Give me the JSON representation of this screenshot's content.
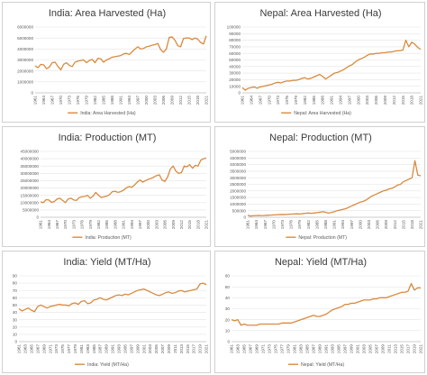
{
  "colors": {
    "series": "#d98a3e",
    "grid": "#e3e3e3",
    "text": "#595959"
  },
  "chart_data": [
    {
      "type": "line",
      "title": "India: Area Harvested (Ha)",
      "legend": {
        "label": "India: Area Harvested (Ha)",
        "placement": "bottom"
      },
      "ylim": [
        0,
        6000000
      ],
      "yticks": [
        "0",
        "1000000",
        "2000000",
        "3000000",
        "4000000",
        "5000000",
        "6000000"
      ],
      "xticks": [
        "1961",
        "1964",
        "1967",
        "1970",
        "1973",
        "1976",
        "1979",
        "1982",
        "1985",
        "1988",
        "1991",
        "1994",
        "1997",
        "2000",
        "2003",
        "2006",
        "2009",
        "2012",
        "2015",
        "2018",
        "2021"
      ],
      "x_start": 1961,
      "series": [
        {
          "name": "India: Area Harvested (Ha)",
          "values": [
            2450000,
            2300000,
            2600000,
            2550000,
            2200000,
            2350000,
            2750000,
            2800000,
            2400000,
            2100000,
            2600000,
            2750000,
            2500000,
            2400000,
            2800000,
            2900000,
            2950000,
            3000000,
            2750000,
            2950000,
            3050000,
            2750000,
            3150000,
            3100000,
            2800000,
            3000000,
            3100000,
            3250000,
            3300000,
            3350000,
            3400000,
            3550000,
            3600000,
            3500000,
            3750000,
            4000000,
            4200000,
            4000000,
            4050000,
            4200000,
            4250000,
            4350000,
            4400000,
            4500000,
            3950000,
            3700000,
            4000000,
            5050000,
            5100000,
            4800000,
            4300000,
            4200000,
            4950000,
            5000000,
            5000000,
            4850000,
            5000000,
            4900000,
            4600000,
            4450000,
            5200000
          ]
        }
      ]
    },
    {
      "type": "line",
      "title": "Nepal: Area Harvested (Ha)",
      "legend": {
        "label": "Nepal: Area Harvested (Ha)",
        "placement": "bottom"
      },
      "ylim": [
        0,
        100000
      ],
      "yticks": [
        "0",
        "10000",
        "20000",
        "30000",
        "40000",
        "50000",
        "60000",
        "70000",
        "80000",
        "90000",
        "100000"
      ],
      "xticks": [
        "1961",
        "1964",
        "1967",
        "1970",
        "1973",
        "1976",
        "1979",
        "1982",
        "1985",
        "1988",
        "1991",
        "1994",
        "1997",
        "2000",
        "2003",
        "2006",
        "2009",
        "2012",
        "2015",
        "2018",
        "2021"
      ],
      "x_start": 1961,
      "series": [
        {
          "name": "Nepal: Area Harvested (Ha)",
          "values": [
            8000,
            4000,
            7000,
            8000,
            9000,
            7000,
            9000,
            10000,
            11000,
            12000,
            13000,
            15000,
            16000,
            15000,
            17000,
            18000,
            18000,
            19000,
            19000,
            20000,
            22000,
            23000,
            21000,
            22000,
            24000,
            26000,
            28000,
            25000,
            21000,
            24000,
            27000,
            30000,
            31000,
            33000,
            35000,
            38000,
            41000,
            43000,
            47000,
            50000,
            52000,
            54000,
            57000,
            59000,
            59000,
            60000,
            60000,
            61000,
            61000,
            62000,
            62000,
            63000,
            64000,
            64000,
            65000,
            80000,
            70000,
            77000,
            74000,
            69000,
            66000
          ]
        }
      ]
    },
    {
      "type": "line",
      "title": "India: Production (MT)",
      "legend": {
        "label": "India: Production (MT)",
        "placement": "bottom"
      },
      "ylim": [
        0,
        45000000
      ],
      "yticks": [
        "0",
        "5000000",
        "10000000",
        "15000000",
        "20000000",
        "25000000",
        "30000000",
        "35000000",
        "40000000",
        "45000000"
      ],
      "xticks": [
        "1961",
        "1964",
        "1967",
        "1970",
        "1973",
        "1976",
        "1979",
        "1982",
        "1985",
        "1988",
        "1991",
        "1994",
        "1997",
        "2000",
        "2003",
        "2006",
        "2009",
        "2012",
        "2015",
        "2018",
        "2021"
      ],
      "x_start": 1961,
      "series": [
        {
          "name": "India: Production (MT)",
          "values": [
            10500000,
            10000000,
            12000000,
            11800000,
            10200000,
            10800000,
            12500000,
            13000000,
            11500000,
            10000000,
            12500000,
            13000000,
            11800000,
            11500000,
            13500000,
            14000000,
            14200000,
            15000000,
            13000000,
            14500000,
            17000000,
            15000000,
            13500000,
            14000000,
            14500000,
            15500000,
            17500000,
            17800000,
            17000000,
            17500000,
            18500000,
            20000000,
            21000000,
            20500000,
            22000000,
            24000000,
            25500000,
            24000000,
            25000000,
            26000000,
            26500000,
            27500000,
            28500000,
            29000000,
            25500000,
            24500000,
            27500000,
            33000000,
            35000000,
            31500000,
            30000000,
            30500000,
            35000000,
            34500000,
            36000000,
            33500000,
            35500000,
            35000000,
            39000000,
            40000000,
            40500000
          ]
        }
      ]
    },
    {
      "type": "line",
      "title": "Nepal: Production (MT)",
      "legend": {
        "label": "Nepal: Production (MT)",
        "placement": "bottom"
      },
      "ylim": [
        0,
        5000000
      ],
      "yticks": [
        "0",
        "500000",
        "1000000",
        "1500000",
        "2000000",
        "2500000",
        "3000000",
        "3500000",
        "4000000",
        "4500000",
        "5000000"
      ],
      "xticks": [
        "1961",
        "1964",
        "1967",
        "1970",
        "1973",
        "1976",
        "1979",
        "1982",
        "1985",
        "1988",
        "1991",
        "1994",
        "1997",
        "2000",
        "2003",
        "2006",
        "2009",
        "2012",
        "2015",
        "2018",
        "2021"
      ],
      "x_start": 1961,
      "series": [
        {
          "name": "Nepal: Production (MT)",
          "values": [
            150000,
            90000,
            120000,
            130000,
            140000,
            120000,
            140000,
            150000,
            160000,
            180000,
            190000,
            200000,
            210000,
            200000,
            220000,
            240000,
            250000,
            260000,
            250000,
            270000,
            300000,
            320000,
            300000,
            320000,
            350000,
            380000,
            420000,
            380000,
            320000,
            360000,
            420000,
            500000,
            550000,
            600000,
            650000,
            750000,
            850000,
            950000,
            1050000,
            1150000,
            1200000,
            1300000,
            1450000,
            1600000,
            1700000,
            1800000,
            1900000,
            2000000,
            2050000,
            2150000,
            2200000,
            2300000,
            2450000,
            2500000,
            2700000,
            2800000,
            2900000,
            3000000,
            4300000,
            3200000,
            3150000
          ]
        }
      ]
    },
    {
      "type": "line",
      "title": "India: Yield (MT/Ha)",
      "legend": {
        "label": "India: Yield (MT/Ha)",
        "placement": "bottom"
      },
      "ylim": [
        0,
        90
      ],
      "yticks": [
        "0",
        "10",
        "20",
        "30",
        "40",
        "50",
        "60",
        "70",
        "80",
        "90"
      ],
      "xticks": [
        "1961",
        "1963",
        "1965",
        "1967",
        "1969",
        "1971",
        "1973",
        "1975",
        "1977",
        "1979",
        "1981",
        "1983",
        "1985",
        "1987",
        "1989",
        "1991",
        "1993",
        "1995",
        "1997",
        "1999",
        "2001",
        "2003",
        "2005",
        "2007",
        "2009",
        "2011",
        "2013",
        "2015",
        "2017",
        "2019",
        "2021"
      ],
      "x_start": 1961,
      "series": [
        {
          "name": "India: Yield (MT/Ha)",
          "values": [
            45,
            42,
            44,
            46,
            43,
            41,
            48,
            50,
            48,
            46,
            48,
            49,
            50,
            51,
            50,
            50,
            49,
            52,
            53,
            51,
            55,
            56,
            52,
            53,
            57,
            58,
            60,
            58,
            57,
            59,
            61,
            63,
            64,
            63,
            65,
            64,
            66,
            68,
            70,
            71,
            72,
            70,
            68,
            66,
            64,
            63,
            65,
            67,
            68,
            66,
            67,
            69,
            70,
            68,
            69,
            70,
            71,
            72,
            79,
            80,
            78
          ]
        }
      ]
    },
    {
      "type": "line",
      "title": "Nepal: Yield (MT/Ha)",
      "legend": {
        "label": "Nepal: Yield (MT/Ha)",
        "placement": "bottom"
      },
      "ylim": [
        0,
        60
      ],
      "yticks": [
        "0",
        "10",
        "20",
        "30",
        "40",
        "50",
        "60"
      ],
      "xticks": [
        "1961",
        "1963",
        "1965",
        "1967",
        "1969",
        "1971",
        "1973",
        "1975",
        "1977",
        "1979",
        "1981",
        "1983",
        "1985",
        "1987",
        "1989",
        "1991",
        "1993",
        "1995",
        "1997",
        "1999",
        "2001",
        "2003",
        "2005",
        "2007",
        "2009",
        "2011",
        "2013",
        "2015",
        "2017",
        "2019",
        "2021"
      ],
      "x_start": 1961,
      "series": [
        {
          "name": "Nepal: Yield (MT/Ha)",
          "values": [
            20,
            19,
            20,
            15,
            16,
            15,
            15,
            15,
            15,
            16,
            16,
            16,
            16,
            16,
            16,
            16,
            17,
            17,
            17,
            17,
            18,
            19,
            20,
            21,
            22,
            23,
            24,
            23,
            23,
            24,
            25,
            27,
            29,
            30,
            31,
            32,
            34,
            34,
            35,
            35,
            36,
            37,
            38,
            38,
            38,
            39,
            39,
            40,
            40,
            40,
            41,
            42,
            43,
            44,
            45,
            45,
            46,
            53,
            47,
            49,
            49
          ]
        }
      ]
    }
  ]
}
